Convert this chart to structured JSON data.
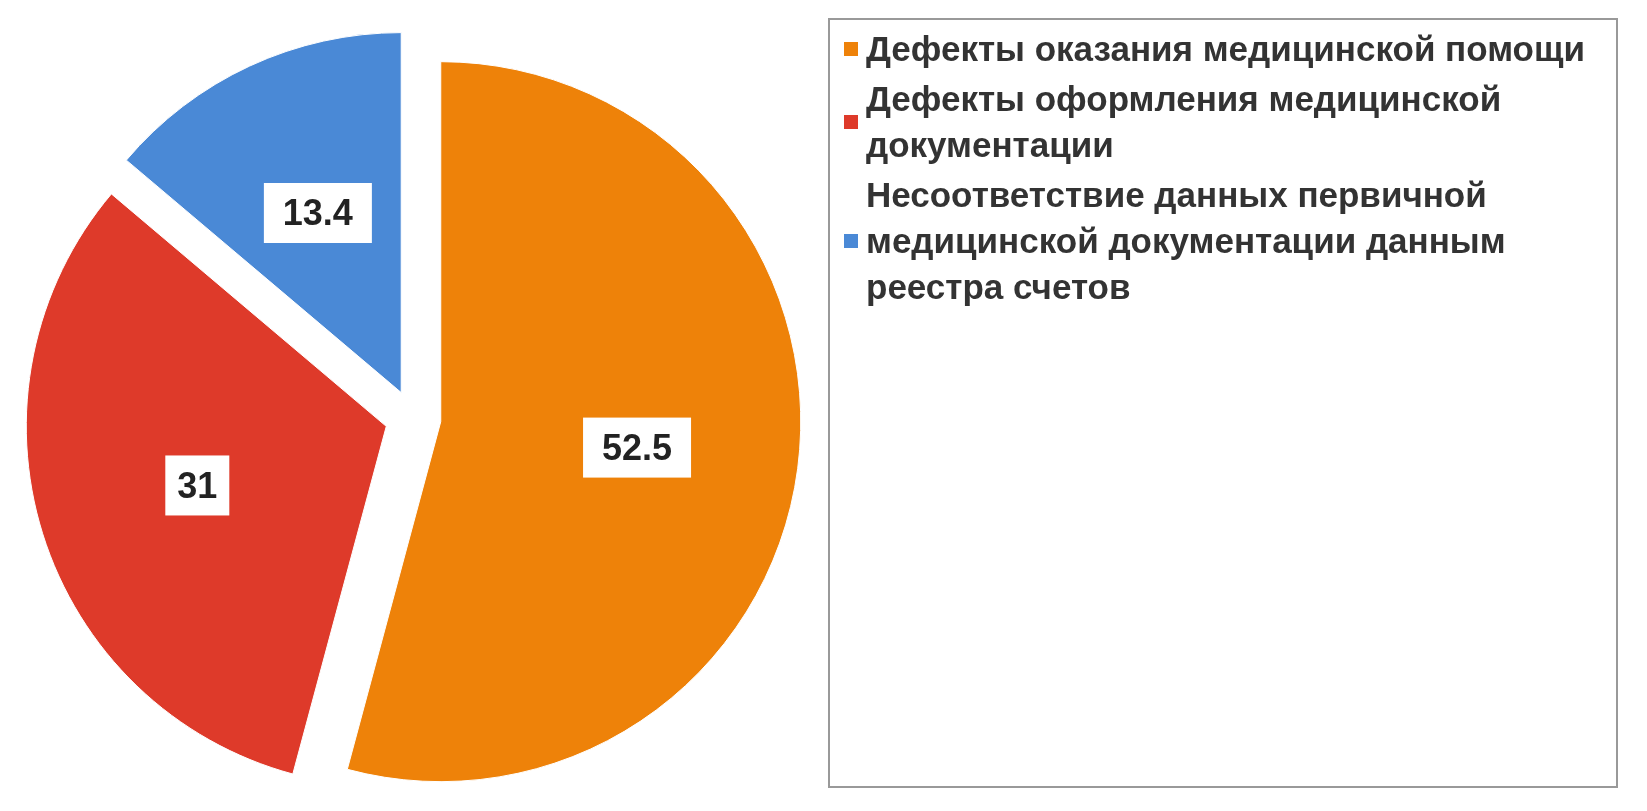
{
  "chart_data": {
    "type": "pie",
    "categories": [
      "Дефекты оказания медицинской помощи",
      "Дефекты оформления медицинской документации",
      "Несоответствие данных первичной медицинской документации данным реестра счетов"
    ],
    "values": [
      52.5,
      31,
      13.4
    ],
    "colors": [
      "#ee8209",
      "#de3a2a",
      "#4a89d6"
    ],
    "data_labels": true,
    "legend": "right"
  }
}
